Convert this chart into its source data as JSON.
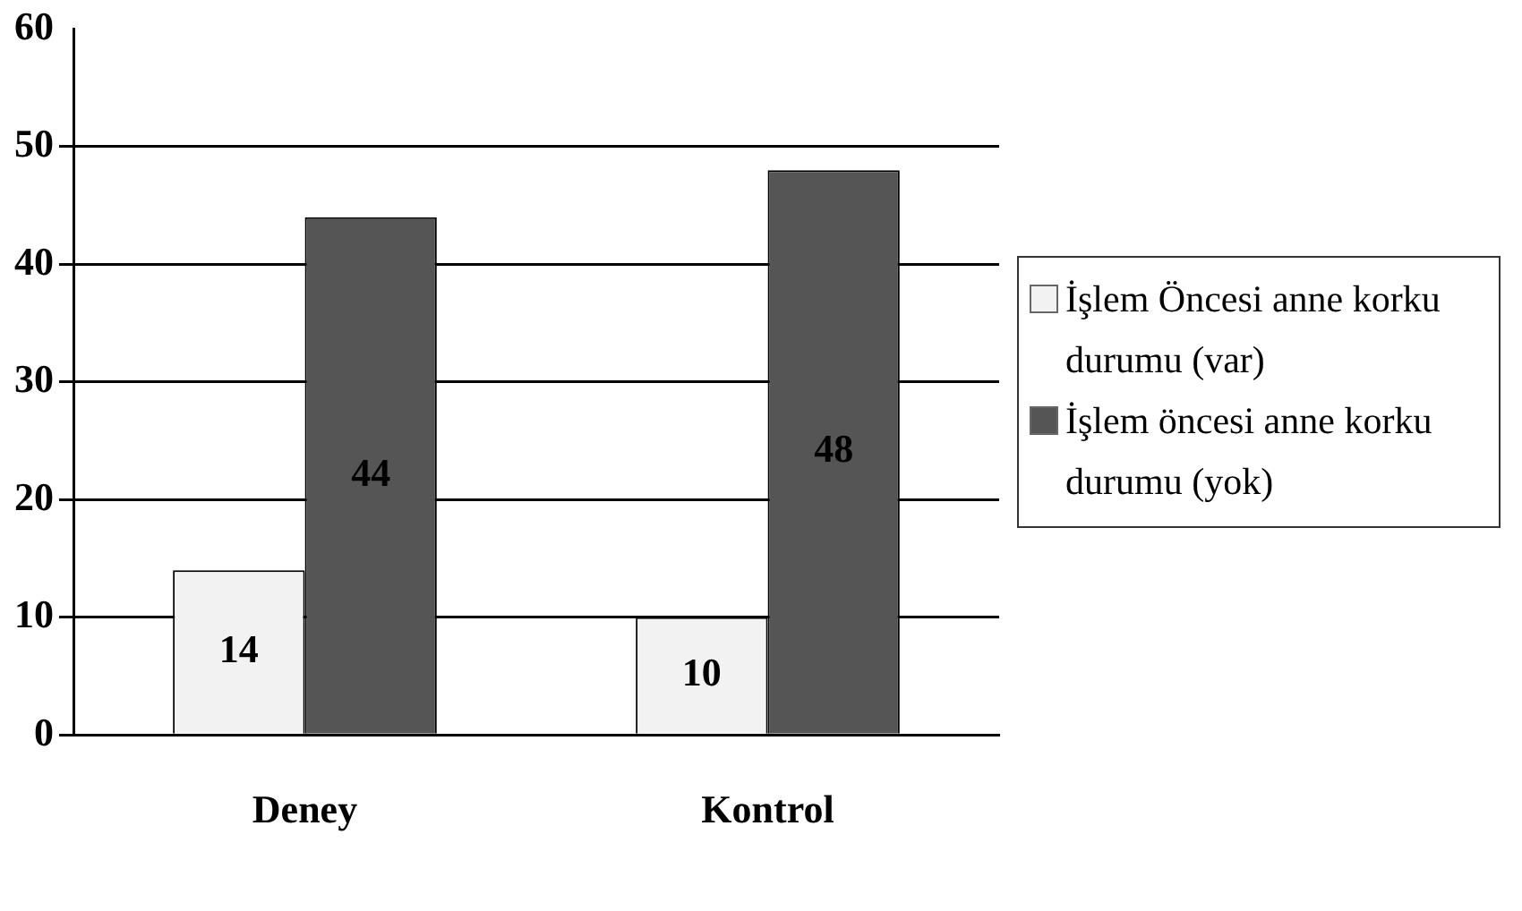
{
  "chart_data": {
    "type": "bar",
    "categories": [
      "Deney",
      "Kontrol"
    ],
    "series": [
      {
        "name": "İşlem Öncesi anne korku durumu (var)",
        "color": "#f2f2f2",
        "values": [
          14,
          10
        ]
      },
      {
        "name": "İşlem öncesi anne korku durumu (yok)",
        "color": "#555555",
        "values": [
          44,
          48
        ]
      }
    ],
    "ylim": [
      0,
      60
    ],
    "yticks": [
      0,
      10,
      20,
      30,
      40,
      50,
      60
    ],
    "grid": "y",
    "legend": "right",
    "data_labels": true
  }
}
